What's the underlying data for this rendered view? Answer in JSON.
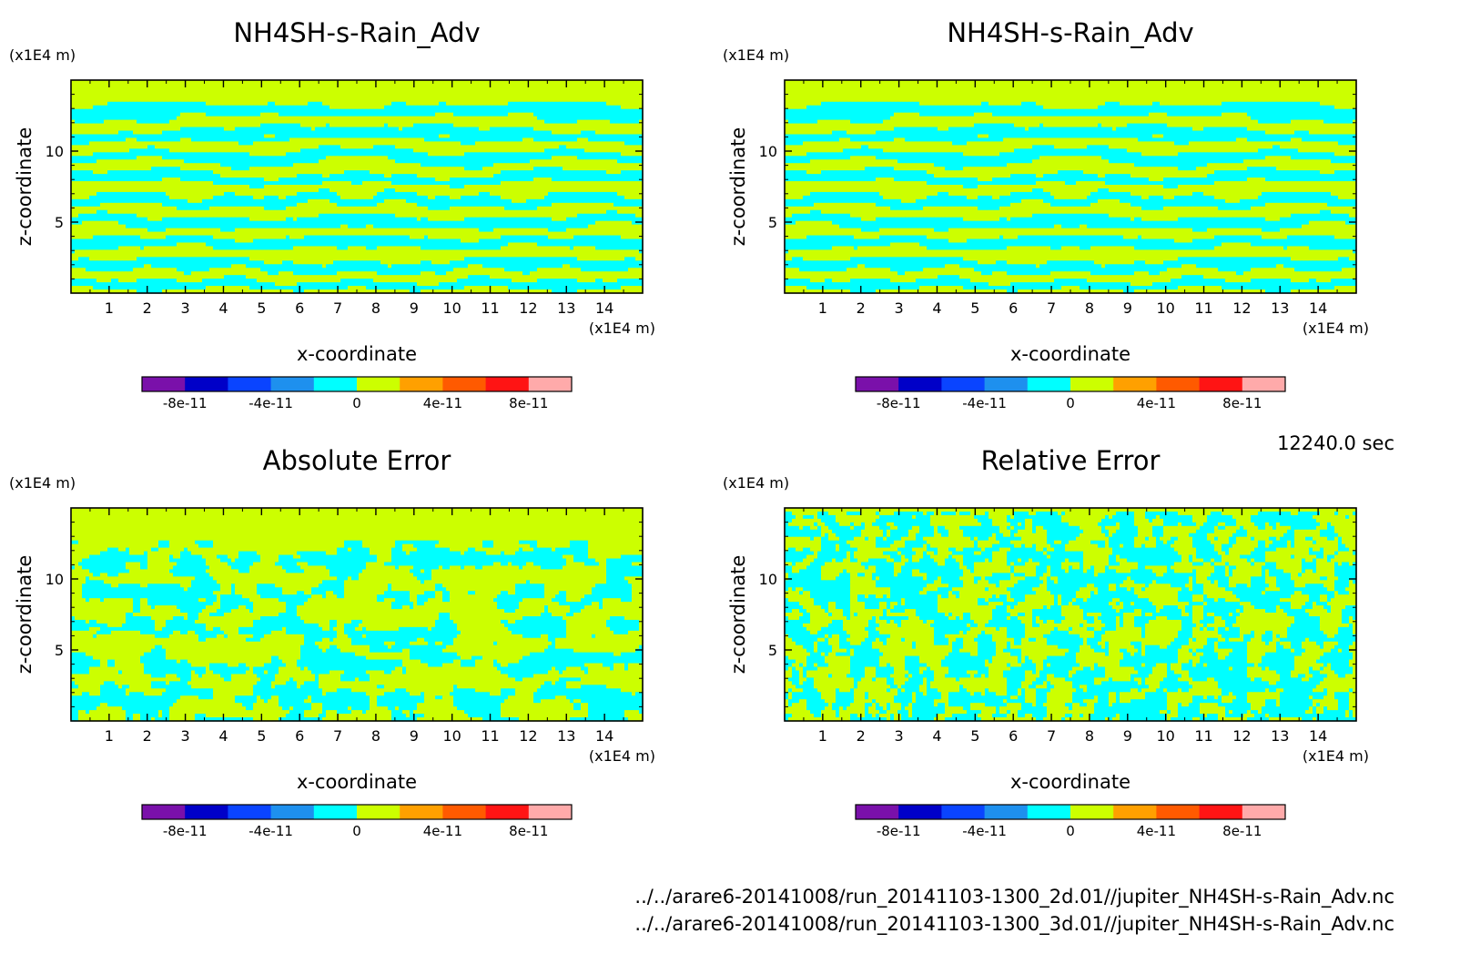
{
  "colors": {
    "background": "#ffffff",
    "field_positive": "#ccff00",
    "field_negative": "#00ffff",
    "colorbar": [
      "#7a10aa",
      "#0000c8",
      "#0a44ff",
      "#1e90ee",
      "#00ffff",
      "#ccff00",
      "#ffa000",
      "#ff5a00",
      "#ff1414",
      "#ffaaaa"
    ]
  },
  "axis_units": {
    "x": "(x1E4 m)",
    "z": "(x1E4 m)"
  },
  "panels": [
    {
      "title": "NH4SH-s-Rain_Adv",
      "pattern": "layered",
      "xlabel": "x-coordinate",
      "ylabel": "z-coordinate",
      "xlim": [
        0,
        15
      ],
      "ylim": [
        0,
        15
      ],
      "xticks": [
        "1",
        "2",
        "3",
        "4",
        "5",
        "6",
        "7",
        "8",
        "9",
        "10",
        "11",
        "12",
        "13",
        "14"
      ],
      "yticks": [
        "5",
        "10"
      ],
      "colorbar_labels": [
        "-8e-11",
        "-4e-11",
        "0",
        "4e-11",
        "8e-11"
      ]
    },
    {
      "title": "NH4SH-s-Rain_Adv",
      "pattern": "layered",
      "xlabel": "x-coordinate",
      "ylabel": "z-coordinate",
      "xlim": [
        0,
        15
      ],
      "ylim": [
        0,
        15
      ],
      "xticks": [
        "1",
        "2",
        "3",
        "4",
        "5",
        "6",
        "7",
        "8",
        "9",
        "10",
        "11",
        "12",
        "13",
        "14"
      ],
      "yticks": [
        "5",
        "10"
      ],
      "colorbar_labels": [
        "-8e-11",
        "-4e-11",
        "0",
        "4e-11",
        "8e-11"
      ]
    },
    {
      "title": "Absolute Error",
      "pattern": "noisy",
      "xlabel": "x-coordinate",
      "ylabel": "z-coordinate",
      "xlim": [
        0,
        15
      ],
      "ylim": [
        0,
        15
      ],
      "xticks": [
        "1",
        "2",
        "3",
        "4",
        "5",
        "6",
        "7",
        "8",
        "9",
        "10",
        "11",
        "12",
        "13",
        "14"
      ],
      "yticks": [
        "5",
        "10"
      ],
      "colorbar_labels": [
        "-8e-11",
        "-4e-11",
        "0",
        "4e-11",
        "8e-11"
      ]
    },
    {
      "title": "Relative Error",
      "pattern": "noisy_full",
      "xlabel": "x-coordinate",
      "ylabel": "z-coordinate",
      "xlim": [
        0,
        15
      ],
      "ylim": [
        0,
        15
      ],
      "xticks": [
        "1",
        "2",
        "3",
        "4",
        "5",
        "6",
        "7",
        "8",
        "9",
        "10",
        "11",
        "12",
        "13",
        "14"
      ],
      "yticks": [
        "5",
        "10"
      ],
      "colorbar_labels": [
        "-8e-11",
        "-4e-11",
        "0",
        "4e-11",
        "8e-11"
      ]
    }
  ],
  "time_label": "12240.0 sec",
  "file_paths": [
    "../../arare6-20141008/run_20141103-1300_2d.01//jupiter_NH4SH-s-Rain_Adv.nc",
    "../../arare6-20141008/run_20141103-1300_3d.01//jupiter_NH4SH-s-Rain_Adv.nc"
  ],
  "chart_data": [
    {
      "type": "heatmap",
      "title": "NH4SH-s-Rain_Adv",
      "xlabel": "x-coordinate",
      "ylabel": "z-coordinate",
      "x_unit": "(x1E4 m)",
      "z_unit": "(x1E4 m)",
      "xlim": [
        0,
        15
      ],
      "ylim": [
        0,
        15
      ],
      "x_ticks": [
        1,
        2,
        3,
        4,
        5,
        6,
        7,
        8,
        9,
        10,
        11,
        12,
        13,
        14
      ],
      "y_ticks": [
        5,
        10
      ],
      "colorbar_ticks": [
        "-8e-11",
        "-4e-11",
        "0",
        "4e-11",
        "8e-11"
      ],
      "color_levels": 10,
      "values_present": [
        "0 to 2e-11",
        "-2e-11 to 0"
      ]
    },
    {
      "type": "heatmap",
      "title": "NH4SH-s-Rain_Adv",
      "xlabel": "x-coordinate",
      "ylabel": "z-coordinate",
      "x_unit": "(x1E4 m)",
      "z_unit": "(x1E4 m)",
      "xlim": [
        0,
        15
      ],
      "ylim": [
        0,
        15
      ],
      "x_ticks": [
        1,
        2,
        3,
        4,
        5,
        6,
        7,
        8,
        9,
        10,
        11,
        12,
        13,
        14
      ],
      "y_ticks": [
        5,
        10
      ],
      "colorbar_ticks": [
        "-8e-11",
        "-4e-11",
        "0",
        "4e-11",
        "8e-11"
      ],
      "color_levels": 10,
      "values_present": [
        "0 to 2e-11",
        "-2e-11 to 0"
      ]
    },
    {
      "type": "heatmap",
      "title": "Absolute Error",
      "xlabel": "x-coordinate",
      "ylabel": "z-coordinate",
      "x_unit": "(x1E4 m)",
      "z_unit": "(x1E4 m)",
      "xlim": [
        0,
        15
      ],
      "ylim": [
        0,
        15
      ],
      "x_ticks": [
        1,
        2,
        3,
        4,
        5,
        6,
        7,
        8,
        9,
        10,
        11,
        12,
        13,
        14
      ],
      "y_ticks": [
        5,
        10
      ],
      "colorbar_ticks": [
        "-8e-11",
        "-4e-11",
        "0",
        "4e-11",
        "8e-11"
      ],
      "color_levels": 10,
      "values_present": [
        "0 to 2e-11",
        "-2e-11 to 0"
      ]
    },
    {
      "type": "heatmap",
      "title": "Relative Error",
      "xlabel": "x-coordinate",
      "ylabel": "z-coordinate",
      "x_unit": "(x1E4 m)",
      "z_unit": "(x1E4 m)",
      "xlim": [
        0,
        15
      ],
      "ylim": [
        0,
        15
      ],
      "x_ticks": [
        1,
        2,
        3,
        4,
        5,
        6,
        7,
        8,
        9,
        10,
        11,
        12,
        13,
        14
      ],
      "y_ticks": [
        5,
        10
      ],
      "colorbar_ticks": [
        "-8e-11",
        "-4e-11",
        "0",
        "4e-11",
        "8e-11"
      ],
      "color_levels": 10,
      "values_present": [
        "0 to 2e-11",
        "-2e-11 to 0"
      ]
    }
  ]
}
